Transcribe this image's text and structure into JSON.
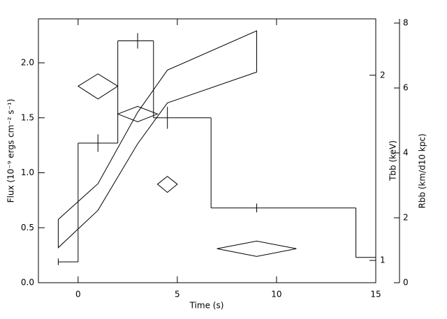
{
  "chart_data": {
    "type": "step",
    "xlabel": "Time (s)",
    "ylabel": "Flux (10⁻⁹ ergs cm⁻² s⁻¹)",
    "y2label": "Tbb (keV)",
    "y3label": "Rbb (km/d10 kpc)",
    "xlim": [
      -2,
      15
    ],
    "xticks": [
      0,
      5,
      10,
      15
    ],
    "ylim": [
      0,
      2.4
    ],
    "yticks": [
      {
        "value": 0,
        "label": "0.0"
      },
      {
        "value": 0.5,
        "label": "0.5"
      },
      {
        "value": 1,
        "label": "1.0"
      },
      {
        "value": 1.5,
        "label": "1.5"
      },
      {
        "value": 2,
        "label": "2.0"
      }
    ],
    "y2lim": [
      0.92,
      2.47
    ],
    "y2ticks": [
      1,
      2
    ],
    "y2log": true,
    "y3lim": [
      0,
      8.13
    ],
    "y3ticks": [
      0,
      2,
      4,
      6,
      8
    ],
    "flux": {
      "bins": [
        -1,
        0,
        2,
        3.8,
        6.7,
        14,
        15
      ],
      "values": [
        0.19,
        1.27,
        2.2,
        1.5,
        0.68,
        0.23
      ],
      "color": "#000000"
    },
    "flux_errors": {
      "x": [
        -1,
        1,
        3,
        4.5,
        9
      ],
      "values": [
        0.19,
        1.27,
        2.2,
        1.5,
        0.68
      ],
      "errors": [
        0.03,
        0.08,
        0.07,
        0.1,
        0.04
      ]
    },
    "temperature": {
      "axis": "y2",
      "x": [
        1,
        3,
        4.5,
        9
      ],
      "xerr": [
        1,
        1,
        0.5,
        2
      ],
      "values": [
        1.92,
        1.73,
        1.33,
        1.045
      ],
      "errors": [
        0.09,
        0.05,
        0.04,
        0.03
      ],
      "color": "#000000"
    },
    "radius": {
      "axis": "y3",
      "x": [
        -1,
        1,
        3,
        4.5,
        9
      ],
      "lower": [
        1.08,
        2.23,
        4.28,
        5.54,
        6.49
      ],
      "upper": [
        1.95,
        3.05,
        5.25,
        6.55,
        7.76
      ],
      "color": "#b4b4b4"
    }
  }
}
